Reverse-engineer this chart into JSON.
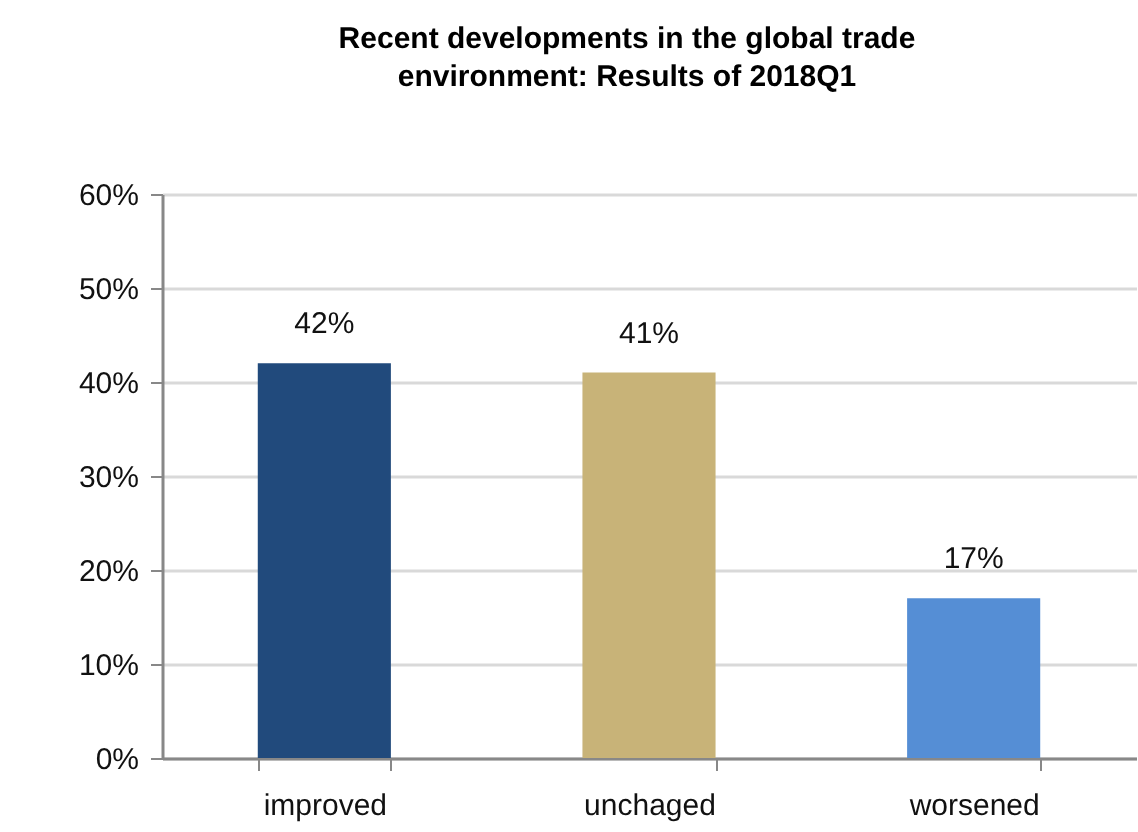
{
  "chart_data": {
    "type": "bar",
    "title": "Recent developments in the global trade environment: Results of 2018Q1",
    "categories": [
      "improved",
      "unchaged",
      "worsened"
    ],
    "values": [
      42,
      41,
      17
    ],
    "colors": [
      "#214a7c",
      "#c8b378",
      "#558ed5"
    ],
    "value_labels": [
      "42%",
      "41%",
      "17%"
    ],
    "ylim": [
      0,
      60
    ],
    "yticks": [
      {
        "value": 0,
        "label": "0%"
      },
      {
        "value": 10,
        "label": "10%"
      },
      {
        "value": 20,
        "label": "20%"
      },
      {
        "value": 30,
        "label": "30%"
      },
      {
        "value": 40,
        "label": "40%"
      },
      {
        "value": 50,
        "label": "50%"
      },
      {
        "value": 60,
        "label": "60%"
      }
    ],
    "grid": "y"
  }
}
